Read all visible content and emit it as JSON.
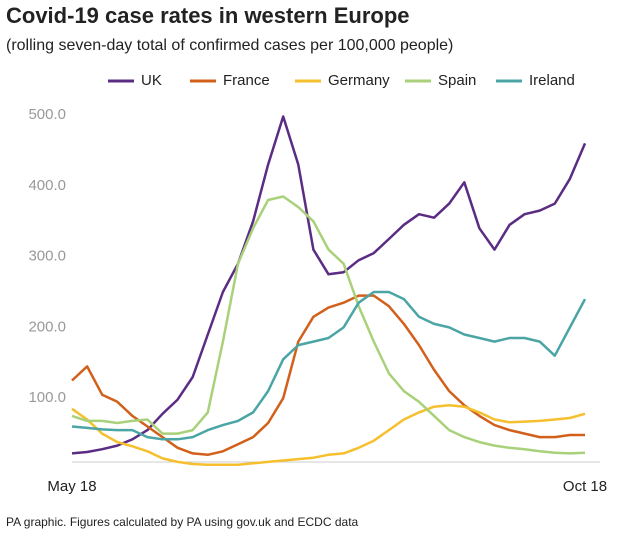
{
  "chart_data": {
    "type": "line",
    "title": "Covid-19 case rates in western Europe",
    "subtitle": "(rolling seven-day total of confirmed cases per 100,000 people)",
    "source": "PA graphic. Figures calculated by PA using gov.uk and ECDC data",
    "categories": [
      "May 18",
      null,
      null,
      null,
      null,
      null,
      null,
      null,
      null,
      null,
      null,
      null,
      null,
      null,
      null,
      null,
      null,
      null,
      null,
      null,
      null,
      null,
      null,
      null,
      null,
      null,
      null,
      null,
      null,
      null,
      null,
      null,
      null,
      null,
      "Oct 18"
    ],
    "ylim": [
      0,
      510
    ],
    "yticks": [
      {
        "value": 100,
        "label": "100.0"
      },
      {
        "value": 200,
        "label": "200.0"
      },
      {
        "value": 300,
        "label": "300.0"
      },
      {
        "value": 400,
        "label": "400.0"
      },
      {
        "value": 500,
        "label": "500.0"
      }
    ],
    "grid": false,
    "legend": "top",
    "series": [
      {
        "name": "UK",
        "color": "#5b2c83",
        "values": [
          22,
          24,
          28,
          33,
          42,
          55,
          78,
          98,
          130,
          190,
          250,
          290,
          350,
          430,
          498,
          430,
          310,
          275,
          278,
          295,
          305,
          325,
          345,
          360,
          355,
          375,
          405,
          340,
          310,
          345,
          360,
          365,
          375,
          410,
          460
        ]
      },
      {
        "name": "France",
        "color": "#d2601a",
        "values": [
          125,
          145,
          105,
          95,
          75,
          60,
          45,
          30,
          22,
          20,
          25,
          35,
          45,
          65,
          100,
          180,
          215,
          228,
          235,
          245,
          245,
          230,
          205,
          175,
          140,
          110,
          90,
          75,
          62,
          55,
          50,
          45,
          45,
          48,
          48
        ]
      },
      {
        "name": "Germany",
        "color": "#f5bf2e",
        "values": [
          85,
          70,
          50,
          38,
          32,
          25,
          15,
          10,
          7,
          6,
          6,
          6,
          8,
          10,
          12,
          14,
          16,
          20,
          22,
          30,
          40,
          55,
          70,
          80,
          88,
          90,
          88,
          80,
          70,
          66,
          67,
          68,
          70,
          72,
          78
        ]
      },
      {
        "name": "Spain",
        "color": "#a9d17a",
        "values": [
          75,
          68,
          68,
          65,
          68,
          70,
          50,
          50,
          55,
          80,
          180,
          290,
          340,
          380,
          385,
          370,
          350,
          310,
          290,
          230,
          180,
          135,
          110,
          95,
          75,
          55,
          45,
          38,
          33,
          30,
          28,
          25,
          23,
          22,
          23
        ]
      },
      {
        "name": "Ireland",
        "color": "#4ba5a5",
        "values": [
          60,
          58,
          56,
          55,
          55,
          45,
          42,
          42,
          45,
          55,
          62,
          68,
          80,
          110,
          155,
          175,
          180,
          185,
          200,
          235,
          250,
          250,
          240,
          215,
          205,
          200,
          190,
          185,
          180,
          185,
          185,
          180,
          160,
          200,
          240
        ]
      }
    ]
  }
}
